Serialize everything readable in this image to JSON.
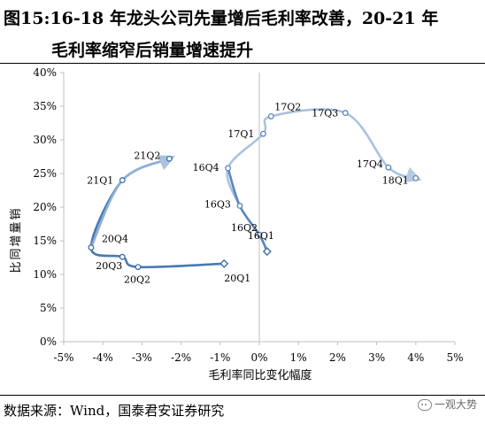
{
  "title": {
    "line1": "图15:16-18 年龙头公司先量增后毛利率改善，20-21 年",
    "line2": "毛利率缩窄后销量增速提升"
  },
  "footer": {
    "source": "数据来源：Wind，国泰君安证券研究",
    "watermark": "一观大势",
    "watermark_icon": "wechat-icon"
  },
  "chart_data": {
    "type": "scatter",
    "xlabel": "毛利率同比变化幅度",
    "ylabel": "销量增同比",
    "xlim": [
      -5,
      5
    ],
    "ylim": [
      0,
      40
    ],
    "x_ticks": [
      -5,
      -4,
      -3,
      -2,
      -1,
      0,
      1,
      2,
      3,
      4,
      5
    ],
    "x_tick_labels": [
      "-5%",
      "-4%",
      "-3%",
      "-2%",
      "-1%",
      "0%",
      "1%",
      "2%",
      "3%",
      "4%",
      "5%"
    ],
    "y_ticks": [
      0,
      5,
      10,
      15,
      20,
      25,
      30,
      35,
      40
    ],
    "y_tick_labels": [
      "0%",
      "5%",
      "10%",
      "15%",
      "20%",
      "25%",
      "30%",
      "35%",
      "40%"
    ],
    "grid": false,
    "series": [
      {
        "color": "#7fa3c8",
        "points": [
          {
            "label": "16Q1",
            "x": 0.2,
            "y": 13.4
          },
          {
            "label": "16Q2",
            "x": 0.0,
            "y": 15.9
          },
          {
            "label": "16Q3",
            "x": -0.5,
            "y": 20.2
          },
          {
            "label": "16Q4",
            "x": -0.8,
            "y": 25.8
          },
          {
            "label": "17Q1",
            "x": 0.1,
            "y": 30.9
          },
          {
            "label": "17Q2",
            "x": 0.3,
            "y": 33.5
          },
          {
            "label": "17Q3",
            "x": 2.2,
            "y": 34.0
          },
          {
            "label": "17Q4",
            "x": 3.3,
            "y": 25.9
          },
          {
            "label": "18Q1",
            "x": 4.0,
            "y": 24.3
          }
        ]
      },
      {
        "color": "#3f6fad",
        "points": [
          {
            "label": "20Q1",
            "x": -0.9,
            "y": 11.6
          },
          {
            "label": "20Q2",
            "x": -3.1,
            "y": 11.1
          },
          {
            "label": "20Q3",
            "x": -3.5,
            "y": 12.6
          },
          {
            "label": "20Q4",
            "x": -4.3,
            "y": 14.0
          },
          {
            "label": "21Q1",
            "x": -3.5,
            "y": 24.0
          },
          {
            "label": "21Q2",
            "x": -2.3,
            "y": 27.2
          }
        ]
      }
    ]
  }
}
